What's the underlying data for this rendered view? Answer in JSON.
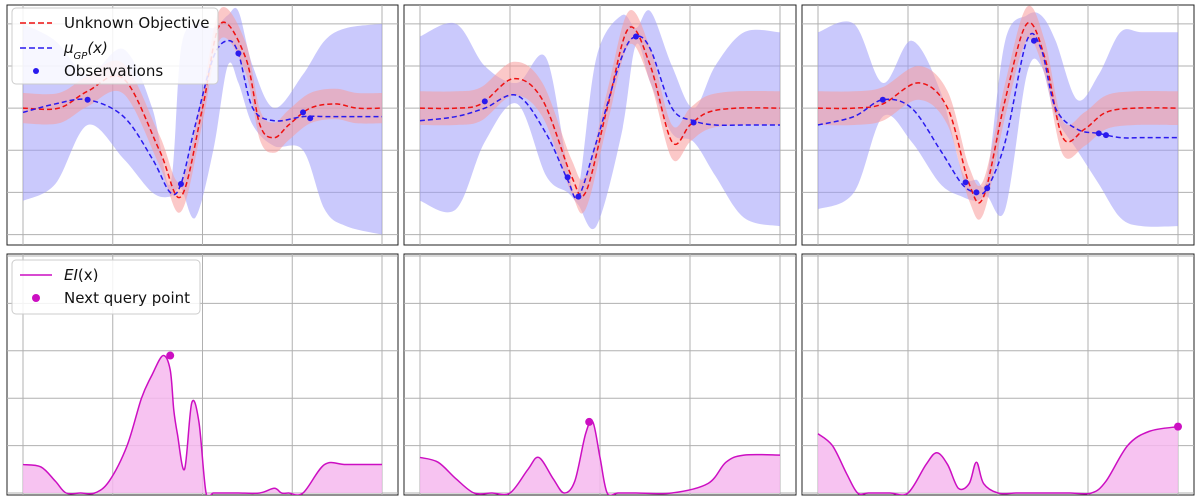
{
  "colors": {
    "objective": "#ee1111",
    "objective_band": "#f79a9a",
    "gp_mean": "#2a1aee",
    "gp_band": "#9f9cf9",
    "observation": "#2a1aee",
    "ei": "#cc0fc2",
    "ei_fill": "#f6b9ee",
    "next_query": "#cc0fc2",
    "grid": "#b0b0b0"
  },
  "legend_top": {
    "unknown_objective": "Unknown Objective",
    "gp_mean_prefix": "μ",
    "gp_mean_sub": "GP",
    "gp_mean_suffix": "(x)",
    "observations": "Observations"
  },
  "legend_bottom": {
    "ei_prefix": "EI",
    "ei_suffix": "(x)",
    "next_query": "Next query point"
  },
  "chart_data": [
    {
      "type": "line",
      "panel": "top-left",
      "xlim": [
        0,
        1
      ],
      "ylim": [
        -1.6,
        1.2
      ],
      "grid": true,
      "legend": "top-left",
      "objective": {
        "x": [
          0,
          0.1,
          0.18,
          0.28,
          0.38,
          0.44,
          0.5,
          0.55,
          0.62,
          0.66,
          0.7,
          0.74,
          0.8,
          0.87,
          0.93,
          1
        ],
        "y": [
          0,
          0.0,
          0.2,
          0.35,
          -0.5,
          -1.05,
          0.0,
          1.0,
          0.6,
          -0.2,
          -0.35,
          -0.2,
          0.0,
          0.05,
          0.0,
          0.0
        ],
        "band": 0.18
      },
      "gp_mean": {
        "x": [
          0,
          0.09,
          0.18,
          0.28,
          0.36,
          0.41,
          0.44,
          0.48,
          0.53,
          0.57,
          0.6,
          0.64,
          0.7,
          0.78,
          0.84,
          0.9,
          1
        ],
        "y": [
          -0.05,
          0.05,
          0.1,
          -0.1,
          -0.6,
          -1.0,
          -0.9,
          -0.2,
          0.6,
          0.8,
          0.65,
          0.0,
          -0.15,
          -0.1,
          -0.1,
          -0.1,
          -0.1
        ],
        "lower": [
          -1.1,
          -0.9,
          -0.2,
          -0.6,
          -1.0,
          -1.05,
          -0.95,
          -1.3,
          -0.5,
          0.5,
          0.3,
          -0.2,
          -0.45,
          -0.5,
          -1.2,
          -1.4,
          -1.5
        ],
        "upper": [
          1.0,
          0.8,
          0.4,
          0.7,
          0.0,
          -0.9,
          0.7,
          1.0,
          0.95,
          1.1,
          1.15,
          0.5,
          0.0,
          0.4,
          0.8,
          0.95,
          1.0
        ]
      },
      "observations": {
        "x": [
          0.18,
          0.44,
          0.6,
          0.78,
          0.8
        ],
        "y": [
          0.1,
          -0.9,
          0.65,
          -0.05,
          -0.12
        ]
      }
    },
    {
      "type": "line",
      "panel": "top-middle",
      "xlim": [
        0,
        1
      ],
      "ylim": [
        -1.6,
        1.2
      ],
      "grid": true,
      "objective": {
        "x": [
          0,
          0.1,
          0.17,
          0.26,
          0.34,
          0.42,
          0.46,
          0.52,
          0.58,
          0.64,
          0.7,
          0.75,
          0.8,
          0.88,
          1
        ],
        "y": [
          0,
          0.0,
          0.05,
          0.35,
          0.1,
          -0.8,
          -1.0,
          0.0,
          0.95,
          0.5,
          -0.4,
          -0.2,
          -0.05,
          0.0,
          0.0
        ],
        "band": 0.2
      },
      "gp_mean": {
        "x": [
          0,
          0.1,
          0.18,
          0.27,
          0.35,
          0.41,
          0.44,
          0.49,
          0.56,
          0.6,
          0.64,
          0.7,
          0.76,
          0.82,
          0.9,
          1
        ],
        "y": [
          -0.15,
          -0.1,
          0.0,
          0.15,
          -0.3,
          -0.85,
          -1.05,
          -0.4,
          0.6,
          0.85,
          0.7,
          0.0,
          -0.15,
          -0.2,
          -0.2,
          -0.2
        ],
        "lower": [
          -1.1,
          -1.2,
          -0.4,
          0.05,
          -0.8,
          -1.0,
          -1.15,
          -1.4,
          -0.3,
          0.75,
          0.3,
          -0.3,
          -0.4,
          -0.8,
          -1.3,
          -1.4
        ],
        "upper": [
          0.85,
          1.0,
          0.5,
          0.3,
          0.6,
          -0.7,
          -0.95,
          0.6,
          1.1,
          0.95,
          1.15,
          0.5,
          0.0,
          0.5,
          0.9,
          0.9
        ]
      },
      "observations": {
        "x": [
          0.18,
          0.41,
          0.44,
          0.6,
          0.76
        ],
        "y": [
          0.08,
          -0.82,
          -1.05,
          0.85,
          -0.17
        ]
      }
    },
    {
      "type": "line",
      "panel": "top-right",
      "xlim": [
        0,
        1
      ],
      "ylim": [
        -1.6,
        1.2
      ],
      "grid": true,
      "objective": {
        "x": [
          0,
          0.1,
          0.18,
          0.28,
          0.36,
          0.42,
          0.46,
          0.52,
          0.58,
          0.63,
          0.68,
          0.74,
          0.8,
          0.88,
          1
        ],
        "y": [
          0,
          0.0,
          0.05,
          0.3,
          0.0,
          -0.9,
          -1.05,
          0.1,
          1.0,
          0.6,
          -0.35,
          -0.25,
          -0.05,
          0.0,
          0.0
        ],
        "band": 0.2
      },
      "gp_mean": {
        "x": [
          0,
          0.1,
          0.18,
          0.26,
          0.34,
          0.4,
          0.44,
          0.47,
          0.52,
          0.58,
          0.62,
          0.66,
          0.72,
          0.78,
          0.84,
          0.9,
          1
        ],
        "y": [
          -0.2,
          -0.1,
          0.1,
          0.0,
          -0.5,
          -0.9,
          -1.0,
          -0.95,
          -0.4,
          0.8,
          0.7,
          0.0,
          -0.25,
          -0.3,
          -0.35,
          -0.35,
          -0.35
        ],
        "lower": [
          -1.2,
          -1.0,
          -0.1,
          -0.4,
          -0.9,
          -1.05,
          -1.1,
          -1.05,
          -1.2,
          0.4,
          0.5,
          -0.1,
          -0.5,
          -0.9,
          -1.3,
          -1.4,
          -1.4
        ],
        "upper": [
          0.9,
          1.0,
          0.3,
          0.8,
          0.2,
          -0.75,
          -0.85,
          -0.8,
          0.8,
          1.1,
          1.1,
          0.8,
          0.1,
          0.4,
          0.9,
          0.9,
          0.9
        ]
      },
      "observations": {
        "x": [
          0.18,
          0.41,
          0.44,
          0.47,
          0.6,
          0.78,
          0.8
        ],
        "y": [
          0.1,
          -0.88,
          -1.0,
          -0.95,
          0.8,
          -0.3,
          -0.32
        ]
      }
    },
    {
      "type": "area",
      "panel": "bottom-left",
      "xlim": [
        0,
        1
      ],
      "ylim": [
        0,
        1
      ],
      "grid": true,
      "legend": "top-left",
      "ei": {
        "x": [
          0,
          0.05,
          0.09,
          0.12,
          0.16,
          0.2,
          0.24,
          0.29,
          0.33,
          0.36,
          0.39,
          0.41,
          0.42,
          0.43,
          0.45,
          0.47,
          0.49,
          0.51,
          0.53,
          0.56,
          0.6,
          0.66,
          0.7,
          0.72,
          0.74,
          0.78,
          0.84,
          0.9,
          1
        ],
        "y": [
          0.12,
          0.11,
          0.05,
          0.0,
          0.0,
          0.0,
          0.05,
          0.2,
          0.4,
          0.5,
          0.58,
          0.52,
          0.35,
          0.25,
          0.1,
          0.38,
          0.3,
          0.0,
          0.0,
          0.0,
          0.0,
          0.0,
          0.02,
          0.0,
          0.0,
          0.0,
          0.12,
          0.12,
          0.12
        ]
      },
      "next_query": {
        "x": 0.41,
        "y": 0.58
      }
    },
    {
      "type": "area",
      "panel": "bottom-middle",
      "xlim": [
        0,
        1
      ],
      "ylim": [
        0,
        1
      ],
      "grid": true,
      "ei": {
        "x": [
          0,
          0.05,
          0.1,
          0.15,
          0.2,
          0.25,
          0.3,
          0.33,
          0.37,
          0.4,
          0.43,
          0.46,
          0.48,
          0.5,
          0.52,
          0.55,
          0.6,
          0.7,
          0.8,
          0.85,
          0.9,
          1
        ],
        "y": [
          0.15,
          0.13,
          0.06,
          0.0,
          0.0,
          0.0,
          0.1,
          0.15,
          0.06,
          0.0,
          0.05,
          0.25,
          0.3,
          0.15,
          0.0,
          0.0,
          0.0,
          0.0,
          0.04,
          0.13,
          0.16,
          0.16
        ]
      },
      "next_query": {
        "x": 0.47,
        "y": 0.3
      }
    },
    {
      "type": "area",
      "panel": "bottom-right",
      "xlim": [
        0,
        1
      ],
      "ylim": [
        0,
        1
      ],
      "grid": true,
      "ei": {
        "x": [
          0,
          0.04,
          0.08,
          0.11,
          0.14,
          0.2,
          0.25,
          0.3,
          0.33,
          0.36,
          0.39,
          0.42,
          0.44,
          0.46,
          0.5,
          0.55,
          0.6,
          0.65,
          0.7,
          0.76,
          0.8,
          0.86,
          0.92,
          1
        ],
        "y": [
          0.25,
          0.2,
          0.08,
          0.0,
          0.0,
          0.0,
          0.0,
          0.12,
          0.17,
          0.12,
          0.02,
          0.04,
          0.13,
          0.04,
          0.0,
          0.0,
          0.0,
          0.0,
          0.0,
          0.0,
          0.05,
          0.2,
          0.26,
          0.28
        ]
      },
      "next_query": {
        "x": 1.0,
        "y": 0.28
      }
    }
  ]
}
